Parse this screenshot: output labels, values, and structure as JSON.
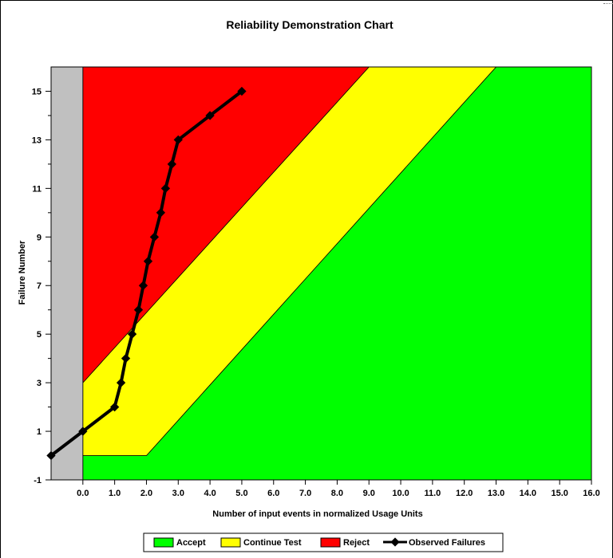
{
  "chart_data": {
    "type": "line",
    "title": "Reliability Demonstration Chart",
    "xlabel": "Number of input events in normalized Usage Units",
    "ylabel": "Failure Number",
    "xlim": [
      -1,
      16
    ],
    "ylim": [
      -1,
      16
    ],
    "x_ticks": [
      0,
      1,
      2,
      3,
      4,
      5,
      6,
      7,
      8,
      9,
      10,
      11,
      12,
      13,
      14,
      15,
      16
    ],
    "x_tick_labels": [
      "0.0",
      "1.0",
      "2.0",
      "3.0",
      "4.0",
      "5.0",
      "6.0",
      "7.0",
      "8.0",
      "9.0",
      "10.0",
      "11.0",
      "12.0",
      "13.0",
      "14.0",
      "15.0",
      "16.0"
    ],
    "y_ticks": [
      -1,
      1,
      3,
      5,
      7,
      9,
      11,
      13,
      15
    ],
    "y_tick_labels": [
      "-1",
      "1",
      "3",
      "5",
      "7",
      "9",
      "11",
      "13",
      "15"
    ],
    "grid": false,
    "legend": {
      "placement": "bottom",
      "entries": [
        "Accept",
        "Continue Test",
        "Reject",
        "Observed Failures"
      ]
    },
    "regions": [
      {
        "name": "Accept",
        "color": "#00ff00",
        "points": [
          [
            0,
            -1
          ],
          [
            16,
            -1
          ],
          [
            16,
            16
          ],
          [
            13,
            16
          ],
          [
            2,
            0
          ],
          [
            0,
            0
          ]
        ]
      },
      {
        "name": "Continue Test",
        "color": "#ffff00",
        "points": [
          [
            0,
            0
          ],
          [
            2,
            0
          ],
          [
            13,
            16
          ],
          [
            9,
            16
          ],
          [
            0,
            3
          ]
        ]
      },
      {
        "name": "Reject",
        "color": "#ff0000",
        "points": [
          [
            0,
            3
          ],
          [
            9,
            16
          ],
          [
            0,
            16
          ]
        ]
      },
      {
        "name": "",
        "color": "#c0c0c0",
        "points": [
          [
            -1,
            -1
          ],
          [
            0,
            -1
          ],
          [
            0,
            16
          ],
          [
            -1,
            16
          ]
        ]
      }
    ],
    "series": [
      {
        "name": "Observed Failures",
        "color": "#000000",
        "x": [
          -1,
          0,
          1,
          1.2,
          1.35,
          1.55,
          1.75,
          1.9,
          2.05,
          2.25,
          2.45,
          2.6,
          2.8,
          3,
          4,
          5
        ],
        "y": [
          0,
          1,
          2,
          3,
          4,
          5,
          6,
          7,
          8,
          9,
          10,
          11,
          12,
          13,
          14,
          15
        ]
      }
    ]
  }
}
